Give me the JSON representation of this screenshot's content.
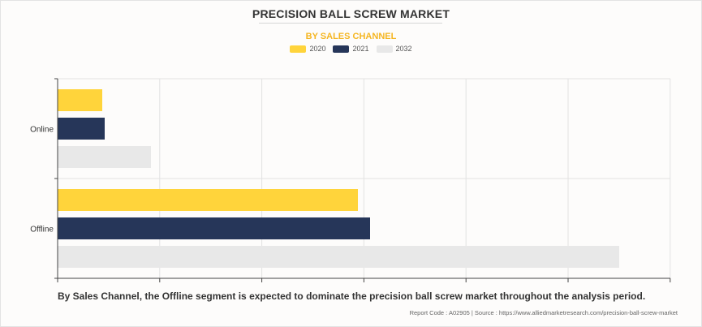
{
  "title": "PRECISION BALL SCREW MARKET",
  "subtitle": "BY SALES CHANNEL",
  "caption": "By Sales Channel, the Offline segment is expected to dominate the precision ball screw market throughout the analysis period.",
  "footer": "Report Code : A02905  |  Source : https://www.alliedmarketresearch.com/precision-ball-screw-market",
  "colors": {
    "2020": "#ffd43b",
    "2021": "#263659",
    "2032": "#e8e8e8",
    "grid": "#e2e2e2",
    "axis": "#444444"
  },
  "chart_data": {
    "type": "bar",
    "orientation": "horizontal",
    "categories": [
      "Online",
      "Offline"
    ],
    "series": [
      {
        "name": "2020",
        "values": [
          55,
          370
        ]
      },
      {
        "name": "2021",
        "values": [
          58,
          385
        ]
      },
      {
        "name": "2032",
        "values": [
          115,
          692
        ]
      }
    ],
    "xlim": [
      0,
      755
    ],
    "grid": true,
    "legend_position": "top-center",
    "xlabel": "",
    "ylabel": ""
  }
}
